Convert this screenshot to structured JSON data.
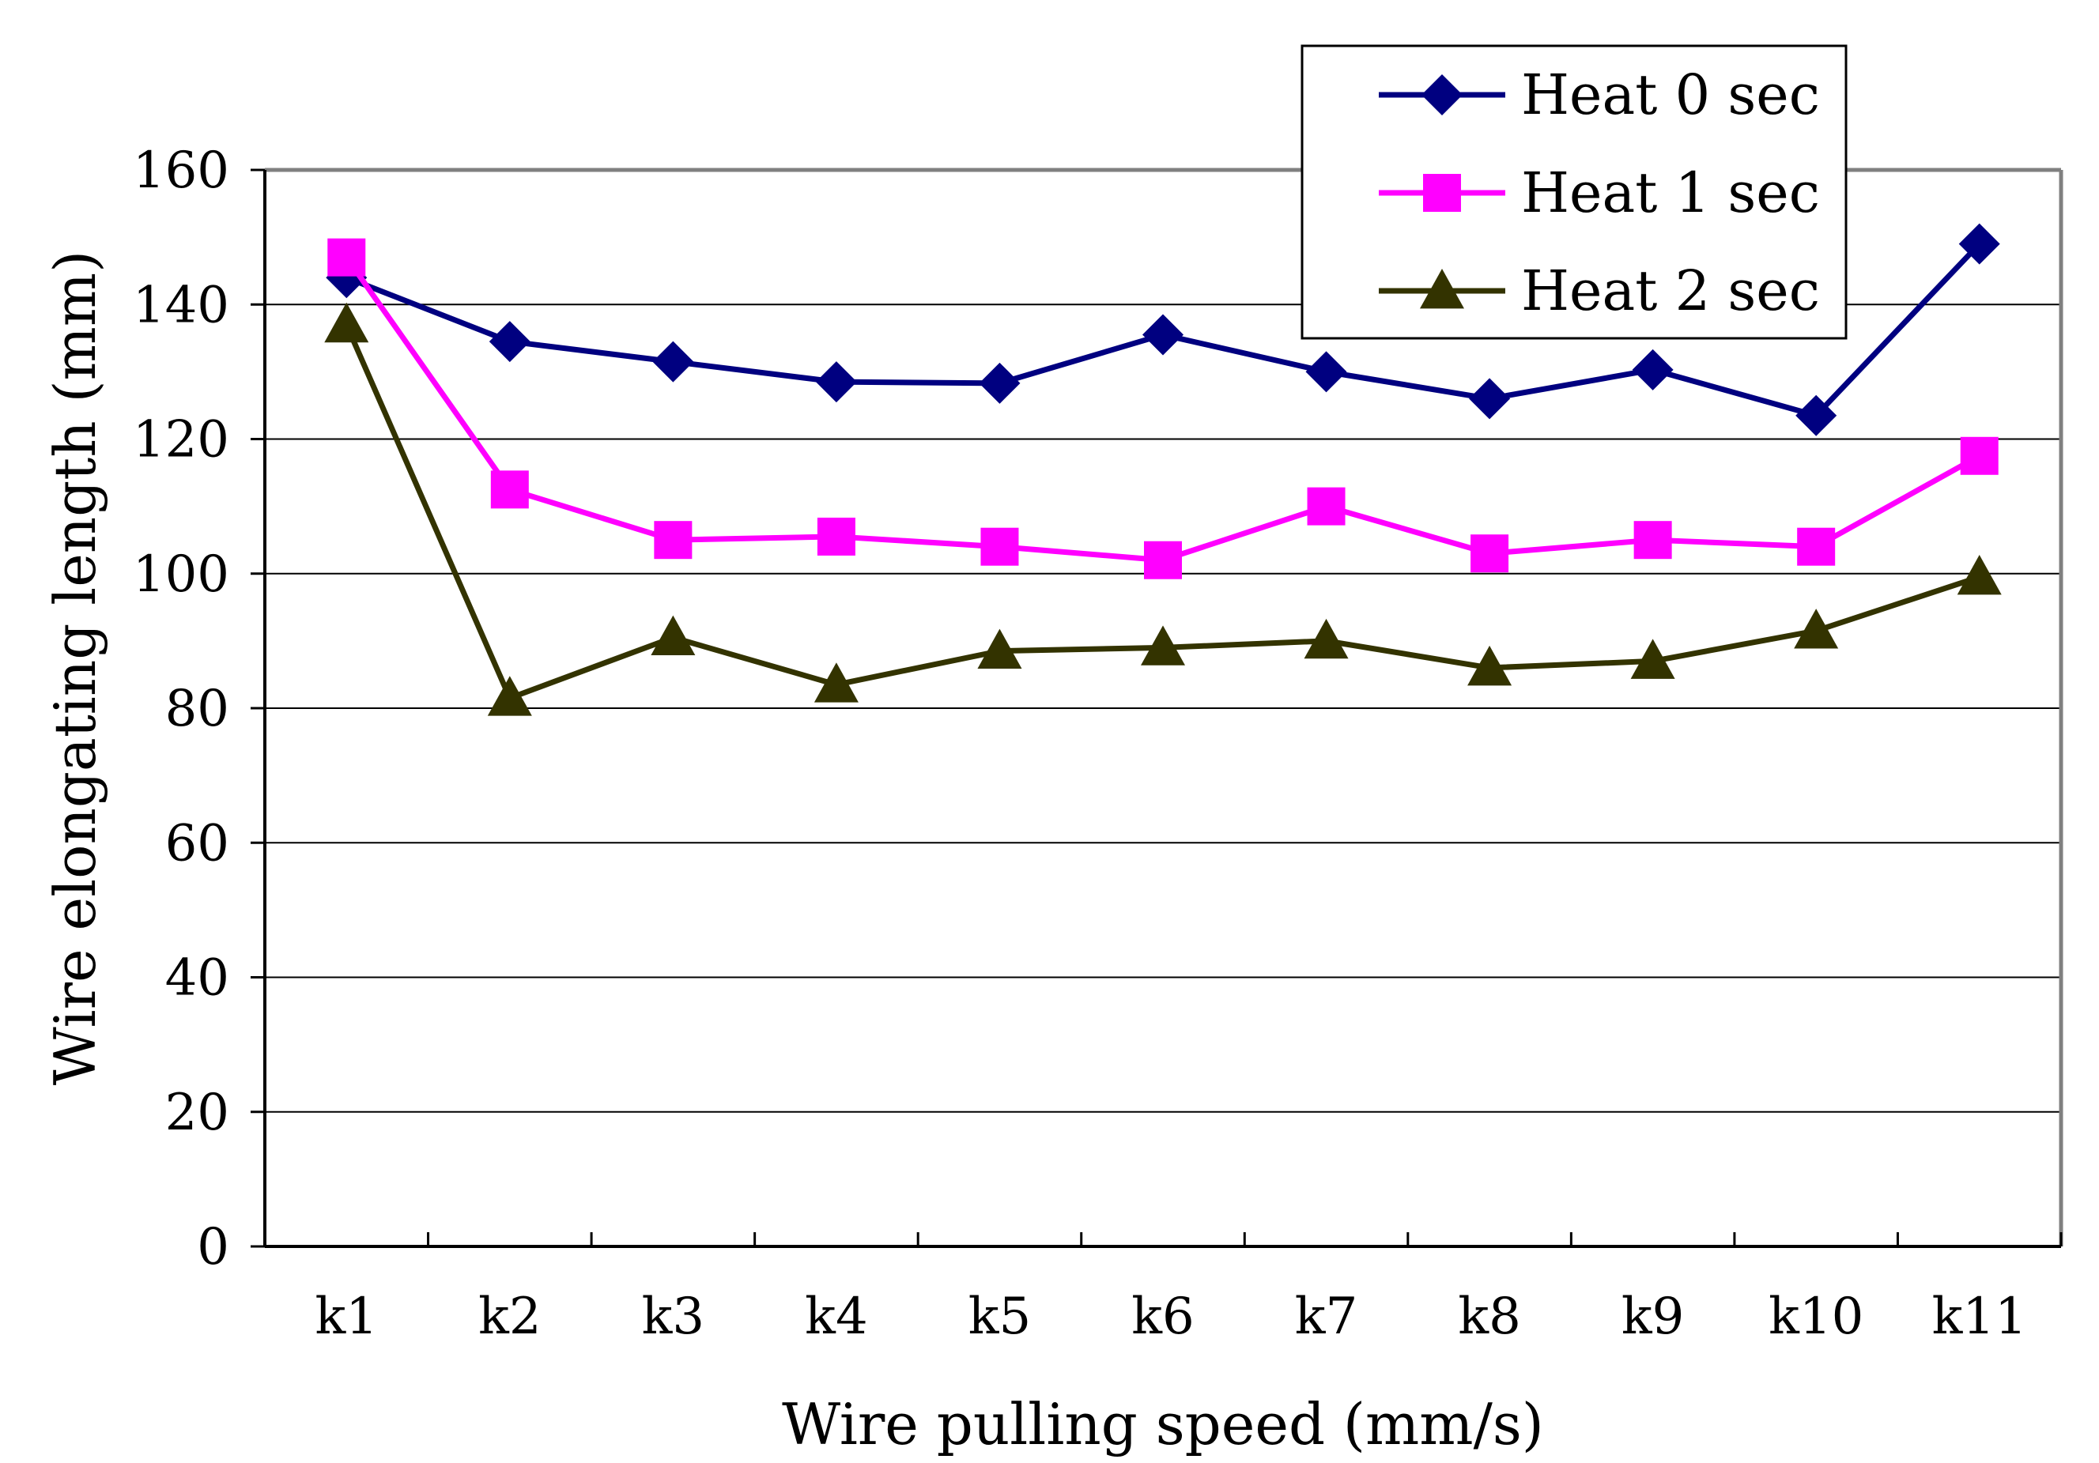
{
  "chart_data": {
    "type": "line",
    "title": "",
    "xlabel": "Wire pulling speed (mm/s)",
    "ylabel": "Wire elongating length (mm)",
    "categories": [
      "k1",
      "k2",
      "k3",
      "k4",
      "k5",
      "k6",
      "k7",
      "k8",
      "k9",
      "k10",
      "k11"
    ],
    "ylim": [
      0,
      160
    ],
    "yticks": [
      0,
      20,
      40,
      60,
      80,
      100,
      120,
      140,
      160
    ],
    "grid": true,
    "legend": "top-right",
    "series": [
      {
        "name": "Heat 0 sec",
        "marker": "diamond",
        "color": "#000080",
        "values": [
          144,
          134.5,
          131.5,
          128.5,
          128.3,
          135.5,
          130,
          126,
          130.3,
          123.5,
          149
        ]
      },
      {
        "name": "Heat 1 sec",
        "marker": "square",
        "color": "#FF00FF",
        "values": [
          147,
          112.5,
          105,
          105.5,
          104,
          102,
          110,
          103,
          105,
          104,
          117.5
        ]
      },
      {
        "name": "Heat 2 sec",
        "marker": "triangle",
        "color": "#333300",
        "values": [
          137,
          81.5,
          90.5,
          83.5,
          88.5,
          89,
          90,
          86,
          87,
          91.5,
          99.5
        ]
      }
    ]
  }
}
